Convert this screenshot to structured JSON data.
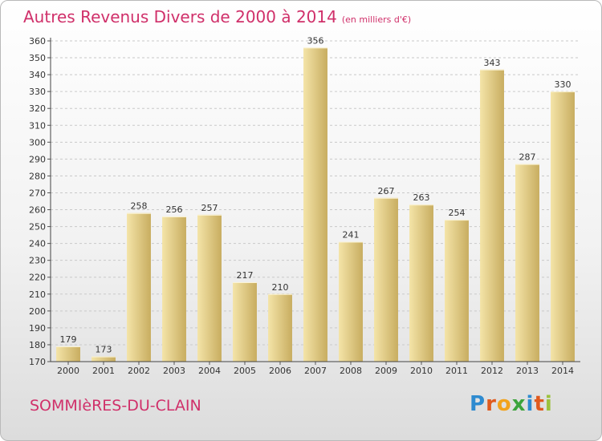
{
  "header": {
    "title": "Autres Revenus Divers de 2000 à 2014",
    "subtitle": "(en milliers d'€)"
  },
  "footer": {
    "town": "SOMMIèRES-DU-CLAIN",
    "brand_letters": [
      "P",
      "r",
      "o",
      "x",
      "i",
      "t",
      "i"
    ],
    "brand_colors": [
      "#2e8bd0",
      "#e05a1e",
      "#f2a31d",
      "#3da43c",
      "#2e8bd0",
      "#e05a1e",
      "#9bc13c"
    ]
  },
  "colors": {
    "title": "#d0306a",
    "bar_light": "#f4e4a8",
    "bar_dark": "#c8ad60"
  },
  "chart_data": {
    "type": "bar",
    "title": "Autres Revenus Divers de 2000 à 2014",
    "subtitle": "(en milliers d'€)",
    "categories": [
      "2000",
      "2001",
      "2002",
      "2003",
      "2004",
      "2005",
      "2006",
      "2007",
      "2008",
      "2009",
      "2010",
      "2011",
      "2012",
      "2013",
      "2014"
    ],
    "values": [
      179,
      173,
      258,
      256,
      257,
      217,
      210,
      356,
      241,
      267,
      263,
      254,
      343,
      287,
      330
    ],
    "ylim": [
      170,
      360
    ],
    "yticks": [
      170,
      180,
      190,
      200,
      210,
      220,
      230,
      240,
      250,
      260,
      270,
      280,
      290,
      300,
      310,
      320,
      330,
      340,
      350,
      360
    ],
    "grid": "horizontal dashed",
    "data_labels": true
  }
}
